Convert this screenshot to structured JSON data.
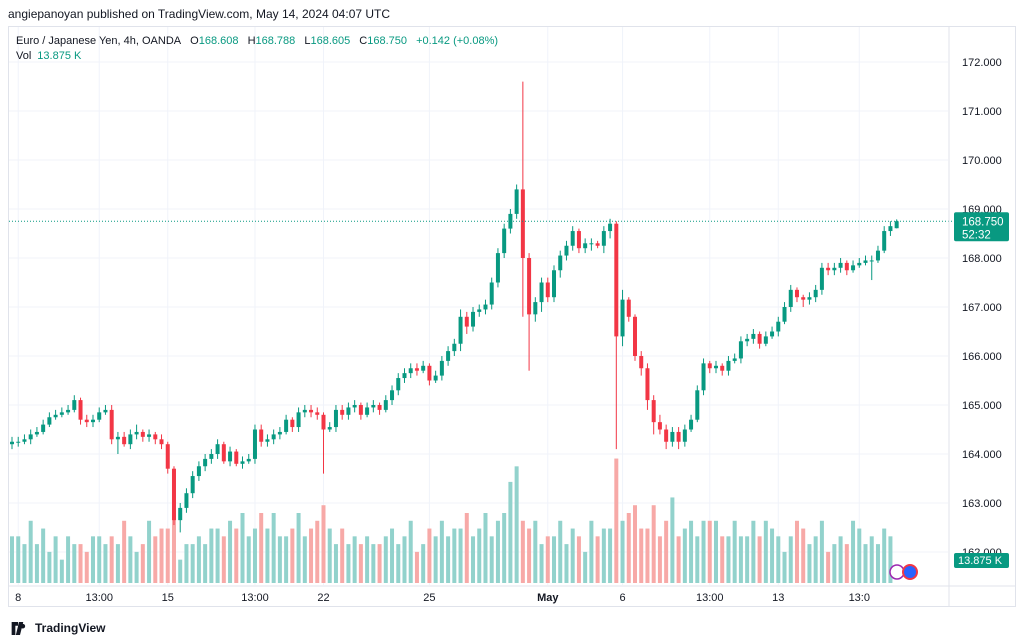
{
  "header": {
    "published_line": "angiepanoyan published on TradingView.com, May 14, 2024 04:07 UTC"
  },
  "legend": {
    "symbol": "Euro / Japanese Yen, 4h, OANDA",
    "o_label": "O",
    "o_value": "168.608",
    "h_label": "H",
    "h_value": "168.788",
    "l_label": "L",
    "l_value": "168.605",
    "c_label": "C",
    "c_value": "168.750",
    "change": "+0.142 (+0.08%)",
    "vol_label": "Vol",
    "vol_value": "13.875 K"
  },
  "price_badge": {
    "price": "168.750",
    "countdown": "52:32"
  },
  "volume_badge": {
    "value": "13.875 K"
  },
  "footer": {
    "brand": "TradingView"
  },
  "colors": {
    "up": "#089981",
    "down": "#f23645",
    "vol_up": "#92d2cc",
    "vol_down": "#f7a9a7",
    "grid": "#f0f3fa",
    "axis_text": "#131722"
  },
  "chart_data": {
    "type": "candlestick",
    "title": "Euro / Japanese Yen, 4h, OANDA",
    "ylim": [
      161.6,
      172.5
    ],
    "y_ticks": [
      "172.000",
      "171.000",
      "170.000",
      "169.000",
      "168.000",
      "167.000",
      "166.000",
      "165.000",
      "164.000",
      "163.000",
      "162.000"
    ],
    "x_ticks": [
      {
        "label": "8",
        "index": 1
      },
      {
        "label": "13:00",
        "index": 14
      },
      {
        "label": "15",
        "index": 25
      },
      {
        "label": "13:00",
        "index": 39
      },
      {
        "label": "22",
        "index": 50
      },
      {
        "label": "25",
        "index": 67
      },
      {
        "label": "May",
        "index": 86,
        "bold": true
      },
      {
        "label": "6",
        "index": 98
      },
      {
        "label": "13:00",
        "index": 112
      },
      {
        "label": "13",
        "index": 123
      },
      {
        "label": "13:0",
        "index": 136
      }
    ],
    "last_price": 168.75,
    "candle_close": [
      164.25,
      164.25,
      164.3,
      164.4,
      164.45,
      164.6,
      164.75,
      164.8,
      164.85,
      164.9,
      165.1,
      164.7,
      164.65,
      164.7,
      164.85,
      164.9,
      164.3,
      164.35,
      164.2,
      164.4,
      164.45,
      164.35,
      164.4,
      164.3,
      164.2,
      163.7,
      162.65,
      162.9,
      163.2,
      163.55,
      163.75,
      163.9,
      164.0,
      164.2,
      163.85,
      164.05,
      163.8,
      163.85,
      163.9,
      164.5,
      164.25,
      164.3,
      164.4,
      164.45,
      164.7,
      164.55,
      164.85,
      164.9,
      164.85,
      164.8,
      164.5,
      164.55,
      164.9,
      164.8,
      164.95,
      165.0,
      164.8,
      164.95,
      165.0,
      164.9,
      165.1,
      165.3,
      165.55,
      165.65,
      165.75,
      165.7,
      165.8,
      165.5,
      165.6,
      165.9,
      166.1,
      166.25,
      166.8,
      166.6,
      166.9,
      166.95,
      167.05,
      167.5,
      168.1,
      168.6,
      168.9,
      169.4,
      168.0,
      166.85,
      167.1,
      167.5,
      167.2,
      167.75,
      168.05,
      168.25,
      168.55,
      168.2,
      168.3,
      168.3,
      168.25,
      168.55,
      168.7,
      166.4,
      167.15,
      166.8,
      166.0,
      165.75,
      165.1,
      164.65,
      164.5,
      164.25,
      164.45,
      164.25,
      164.5,
      164.7,
      165.3,
      165.85,
      165.75,
      165.8,
      165.7,
      165.9,
      165.95,
      166.3,
      166.35,
      166.45,
      166.25,
      166.4,
      166.5,
      166.7,
      167.0,
      167.35,
      167.2,
      167.15,
      167.2,
      167.35,
      167.8,
      167.75,
      167.8,
      167.9,
      167.75,
      167.85,
      167.9,
      167.95,
      167.95,
      168.15,
      168.55,
      168.65,
      168.75
    ],
    "candle_open": [
      164.2,
      164.25,
      164.25,
      164.3,
      164.4,
      164.45,
      164.6,
      164.75,
      164.8,
      164.85,
      164.9,
      165.1,
      164.7,
      164.65,
      164.7,
      164.85,
      164.9,
      164.3,
      164.35,
      164.2,
      164.4,
      164.45,
      164.35,
      164.4,
      164.3,
      164.2,
      163.7,
      162.65,
      162.9,
      163.2,
      163.55,
      163.75,
      163.9,
      164.0,
      164.2,
      163.85,
      164.05,
      163.8,
      163.85,
      163.9,
      164.5,
      164.25,
      164.3,
      164.4,
      164.45,
      164.7,
      164.55,
      164.85,
      164.9,
      164.85,
      164.8,
      164.5,
      164.55,
      164.9,
      164.8,
      164.95,
      165.0,
      164.8,
      164.95,
      165.0,
      164.9,
      165.1,
      165.3,
      165.55,
      165.65,
      165.75,
      165.7,
      165.8,
      165.5,
      165.6,
      165.9,
      166.1,
      166.25,
      166.8,
      166.6,
      166.9,
      166.95,
      167.05,
      167.5,
      168.1,
      168.6,
      168.9,
      169.4,
      168.0,
      166.85,
      167.1,
      167.5,
      167.2,
      167.75,
      168.05,
      168.25,
      168.55,
      168.2,
      168.3,
      168.3,
      168.25,
      168.55,
      168.7,
      166.4,
      167.15,
      166.8,
      166.0,
      165.75,
      165.1,
      164.65,
      164.5,
      164.25,
      164.45,
      164.25,
      164.5,
      164.7,
      165.3,
      165.85,
      165.75,
      165.8,
      165.7,
      165.9,
      165.95,
      166.3,
      166.35,
      166.45,
      166.25,
      166.4,
      166.5,
      166.7,
      167.0,
      167.35,
      167.2,
      167.15,
      167.2,
      167.35,
      167.8,
      167.75,
      167.8,
      167.9,
      167.75,
      167.85,
      167.9,
      167.95,
      167.95,
      168.15,
      168.55,
      168.608
    ],
    "candle_high": [
      164.35,
      164.35,
      164.4,
      164.5,
      164.55,
      164.7,
      164.85,
      164.9,
      164.95,
      165.0,
      165.2,
      165.15,
      164.8,
      164.8,
      164.95,
      165.0,
      165.0,
      164.45,
      164.45,
      164.5,
      164.6,
      164.5,
      164.5,
      164.45,
      164.4,
      164.25,
      163.75,
      163.0,
      163.3,
      163.65,
      163.85,
      164.0,
      164.1,
      164.3,
      164.25,
      164.15,
      164.1,
      163.95,
      164.0,
      164.6,
      164.6,
      164.4,
      164.5,
      164.55,
      164.8,
      164.75,
      164.95,
      165.0,
      165.0,
      164.95,
      164.85,
      164.65,
      165.0,
      165.0,
      165.05,
      165.1,
      165.05,
      165.05,
      165.1,
      165.05,
      165.2,
      165.4,
      165.65,
      165.75,
      165.85,
      165.85,
      165.9,
      165.85,
      165.7,
      166.0,
      166.2,
      166.35,
      166.95,
      166.9,
      167.0,
      167.05,
      167.15,
      167.6,
      168.2,
      168.7,
      169.0,
      169.5,
      171.6,
      168.1,
      167.2,
      167.6,
      167.6,
      167.85,
      168.15,
      168.35,
      168.65,
      168.6,
      168.4,
      168.4,
      168.35,
      168.65,
      168.8,
      168.75,
      167.35,
      167.2,
      166.85,
      166.1,
      165.85,
      165.2,
      164.8,
      164.6,
      164.55,
      164.55,
      164.6,
      164.8,
      165.4,
      165.95,
      165.9,
      165.9,
      165.85,
      166.0,
      166.05,
      166.4,
      166.45,
      166.55,
      166.5,
      166.5,
      166.6,
      166.8,
      167.1,
      167.45,
      167.4,
      167.25,
      167.3,
      167.45,
      167.9,
      167.9,
      167.9,
      168.0,
      167.95,
      167.95,
      168.0,
      168.05,
      168.05,
      168.25,
      168.65,
      168.75,
      168.788
    ],
    "candle_low": [
      164.1,
      164.15,
      164.2,
      164.2,
      164.35,
      164.4,
      164.55,
      164.7,
      164.75,
      164.8,
      164.85,
      164.6,
      164.55,
      164.55,
      164.65,
      164.8,
      164.2,
      164.0,
      164.15,
      164.1,
      164.3,
      164.25,
      164.25,
      164.2,
      164.1,
      163.6,
      162.55,
      162.4,
      162.8,
      163.1,
      163.45,
      163.65,
      163.8,
      163.9,
      163.8,
      163.75,
      163.75,
      163.7,
      163.8,
      163.8,
      164.15,
      164.15,
      164.2,
      164.3,
      164.4,
      164.45,
      164.45,
      164.75,
      164.75,
      164.7,
      163.6,
      164.45,
      164.45,
      164.7,
      164.7,
      164.85,
      164.7,
      164.75,
      164.85,
      164.8,
      164.85,
      165.0,
      165.2,
      165.45,
      165.55,
      165.6,
      165.65,
      165.4,
      165.45,
      165.5,
      165.8,
      166.0,
      166.1,
      166.45,
      166.5,
      166.8,
      166.85,
      166.95,
      167.4,
      168.0,
      168.5,
      168.8,
      166.8,
      165.7,
      166.7,
      166.9,
      167.1,
      167.1,
      167.6,
      167.95,
      168.15,
      168.1,
      168.1,
      168.15,
      168.2,
      168.1,
      168.4,
      164.1,
      166.2,
      166.7,
      165.9,
      165.6,
      164.9,
      164.4,
      164.4,
      164.1,
      164.15,
      164.1,
      164.15,
      164.45,
      164.65,
      165.2,
      165.65,
      165.65,
      165.6,
      165.6,
      165.85,
      165.85,
      166.2,
      166.25,
      166.15,
      166.2,
      166.35,
      166.4,
      166.65,
      166.9,
      167.1,
      167.0,
      167.05,
      167.1,
      167.25,
      167.65,
      167.65,
      167.7,
      167.65,
      167.7,
      167.8,
      167.85,
      167.55,
      167.9,
      168.1,
      168.45,
      168.605
    ],
    "volume": [
      6,
      6,
      5,
      8,
      5,
      7,
      4,
      6,
      3,
      6,
      5,
      5,
      4,
      6,
      6,
      5,
      6,
      5,
      8,
      6,
      4,
      5,
      8,
      6,
      7,
      7,
      9,
      3,
      5,
      5,
      6,
      5,
      7,
      7,
      6,
      8,
      7,
      9,
      6,
      7,
      9,
      7,
      9,
      6,
      6,
      7,
      9,
      6,
      7,
      8,
      10,
      7,
      5,
      7,
      5,
      6,
      5,
      6,
      5,
      5,
      6,
      7,
      5,
      6,
      8,
      4,
      5,
      7,
      6,
      8,
      6,
      7,
      7,
      9,
      6,
      7,
      9,
      6,
      8,
      9,
      13,
      15,
      8,
      7,
      8,
      5,
      6,
      6,
      8,
      5,
      7,
      6,
      4,
      8,
      6,
      7,
      7,
      16,
      8,
      9,
      10,
      7,
      7,
      10,
      6,
      8,
      11,
      6,
      7,
      8,
      6,
      8,
      8,
      8,
      6,
      6,
      8,
      6,
      6,
      8,
      6,
      8,
      7,
      6,
      4,
      6,
      8,
      7,
      5,
      6,
      8,
      4,
      5,
      6,
      5,
      8,
      7,
      5,
      6,
      5,
      7,
      6
    ],
    "volume_axis_max": 18
  }
}
